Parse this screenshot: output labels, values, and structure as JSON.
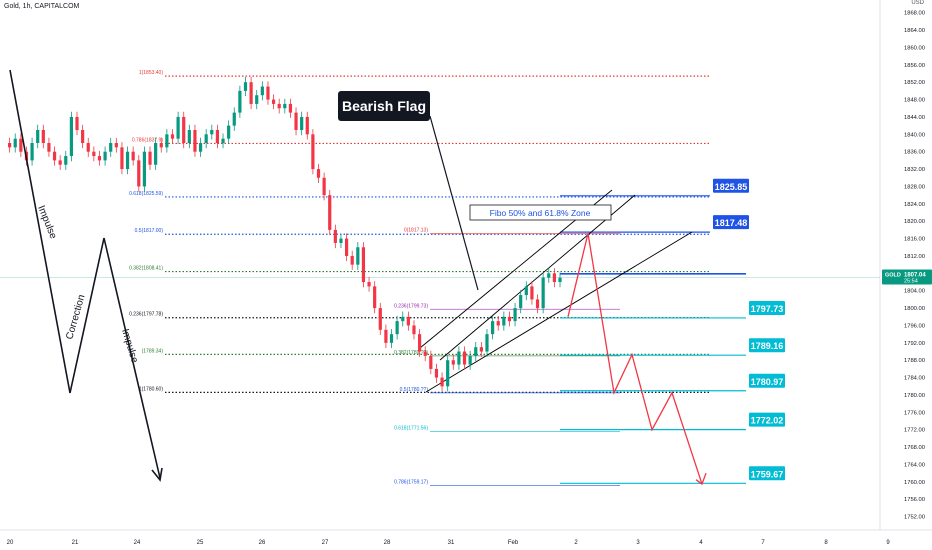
{
  "header": {
    "symbol_line": "Gold, 1h, CAPITALCOM"
  },
  "price_axis": {
    "currency": "USD",
    "ticks": [
      "1868.00",
      "1864.00",
      "1860.00",
      "1856.00",
      "1852.00",
      "1848.00",
      "1844.00",
      "1840.00",
      "1836.00",
      "1832.00",
      "1828.00",
      "1824.00",
      "1820.00",
      "1816.00",
      "1812.00",
      "1808.00",
      "1804.00",
      "1800.00",
      "1796.00",
      "1792.00",
      "1788.00",
      "1784.00",
      "1780.00",
      "1776.00",
      "1772.00",
      "1768.00",
      "1764.00",
      "1760.00",
      "1756.00",
      "1752.00",
      "1748.00"
    ],
    "current_label": "GOLD",
    "current_price": "1807.04",
    "current_countdown": "25:54"
  },
  "time_axis": {
    "ticks": [
      "20",
      "21",
      "24",
      "25",
      "26",
      "27",
      "28",
      "31",
      "Feb",
      "2",
      "3",
      "4",
      "7",
      "8",
      "9"
    ]
  },
  "annotations": {
    "flag_title": "Bearish Flag",
    "zone_label": "Fibo 50% and 61.8% Zone",
    "impulse_1": "Impulse",
    "correction": "Correction",
    "impulse_2": "Impulse"
  },
  "chart_data": {
    "type": "line",
    "title": "Gold, 1h, CAPITALCOM",
    "ylabel": "USD",
    "ylim": [
      1748,
      1870
    ],
    "x_tick_labels": [
      "20",
      "21",
      "24",
      "25",
      "26",
      "27",
      "28",
      "31",
      "Feb",
      "2",
      "3",
      "4",
      "7",
      "8",
      "9"
    ],
    "fib_levels_left": [
      {
        "label": "1(1853.40)",
        "value": 1853.4,
        "color": "#e53935"
      },
      {
        "label": "0.786(1837.9)",
        "value": 1837.9,
        "color": "#e53935"
      },
      {
        "label": "0.618(1825.59)",
        "value": 1825.59,
        "color": "#1e53e5"
      },
      {
        "label": "0.5(1817.00)",
        "value": 1817.0,
        "color": "#1e53e5"
      },
      {
        "label": "0.382(1808.41)",
        "value": 1808.41,
        "color": "#2e7d32"
      },
      {
        "label": "0.236(1797.78)",
        "value": 1797.78,
        "color": "#131722"
      },
      {
        "label": "(1789.34)",
        "value": 1789.34,
        "color": "#2e7d32"
      },
      {
        "label": "1(1780.60)",
        "value": 1780.6,
        "color": "#131722"
      }
    ],
    "fib_levels_right": [
      {
        "label": "0(1817.13)",
        "value": 1817.13,
        "color": "#e53935"
      },
      {
        "label": "0.236(1799.73)",
        "value": 1799.73,
        "color": "#9c27b0"
      },
      {
        "label": "0.382(1789.??)",
        "value": 1789.0,
        "color": "#2e7d32"
      },
      {
        "label": "0.5(1780.??)",
        "value": 1780.5,
        "color": "#1e53e5"
      },
      {
        "label": "0.618(1771.56)",
        "value": 1771.56,
        "color": "#00bcd4"
      },
      {
        "label": "0.786(1759.17)",
        "value": 1759.17,
        "color": "#1e53e5"
      }
    ],
    "target_levels": [
      {
        "label": "1825.85",
        "value": 1825.85,
        "color": "#1e53e5"
      },
      {
        "label": "1817.48",
        "value": 1817.48,
        "color": "#1e53e5"
      },
      {
        "label": "1797.73",
        "value": 1797.73,
        "color": "#00bcd4"
      },
      {
        "label": "1789.16",
        "value": 1789.16,
        "color": "#00bcd4"
      },
      {
        "label": "1780.97",
        "value": 1780.97,
        "color": "#00bcd4"
      },
      {
        "label": "1772.02",
        "value": 1772.02,
        "color": "#00bcd4"
      },
      {
        "label": "1759.67",
        "value": 1759.67,
        "color": "#00bcd4"
      }
    ],
    "resistance_line": 1807.9,
    "projection_path": [
      {
        "t": "Feb 1",
        "value": 1798
      },
      {
        "t": "Feb 2",
        "value": 1817.2
      },
      {
        "t": "Feb 2-3",
        "value": 1780.5
      },
      {
        "t": "Feb 3",
        "value": 1789.3
      },
      {
        "t": "Feb 3-4",
        "value": 1772
      },
      {
        "t": "Feb 4",
        "value": 1780.5
      },
      {
        "t": "Feb 4",
        "value": 1759.5
      }
    ],
    "price_path": [
      1838,
      1837,
      1839,
      1836,
      1834,
      1838,
      1841,
      1838,
      1836,
      1834,
      1833,
      1835,
      1844,
      1841,
      1838,
      1836,
      1835,
      1834,
      1836,
      1838,
      1837,
      1832,
      1836,
      1834,
      1828,
      1836,
      1833,
      1838,
      1837,
      1840,
      1839,
      1844,
      1838,
      1841,
      1836,
      1838,
      1840,
      1841,
      1838,
      1839,
      1842,
      1845,
      1850,
      1852,
      1847,
      1849,
      1851,
      1848,
      1847,
      1846,
      1847,
      1845,
      1841,
      1844,
      1840,
      1832,
      1830,
      1826,
      1818,
      1815,
      1816,
      1812,
      1810,
      1814,
      1806,
      1805,
      1800,
      1795,
      1792,
      1794,
      1797,
      1798,
      1796,
      1794,
      1790,
      1789,
      1786,
      1784,
      1782,
      1788,
      1787,
      1790,
      1787,
      1789,
      1791,
      1790,
      1794,
      1797,
      1796,
      1798,
      1797,
      1800,
      1803,
      1805,
      1802,
      1800,
      1807,
      1808,
      1806,
      1807
    ],
    "current": 1807.04
  }
}
